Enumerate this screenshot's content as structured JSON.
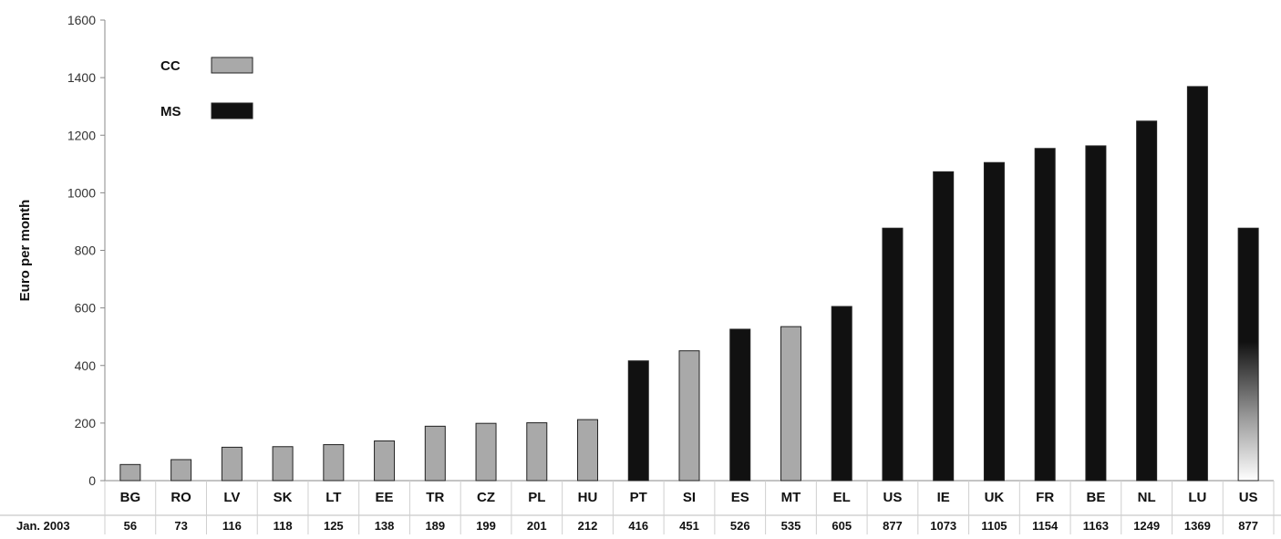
{
  "chart_data": {
    "type": "bar",
    "title": "",
    "xlabel": "",
    "ylabel": "Euro per month",
    "ylim": [
      0,
      1600
    ],
    "yticks": [
      0,
      200,
      400,
      600,
      800,
      1000,
      1200,
      1400,
      1600
    ],
    "grid": false,
    "legend_position": "top-left",
    "table_row_label": "Jan. 2003",
    "series": [
      {
        "name": "CC",
        "color": "#a9a9a9"
      },
      {
        "name": "MS",
        "color": "#111111"
      }
    ],
    "categories": [
      "BG",
      "RO",
      "LV",
      "SK",
      "LT",
      "EE",
      "TR",
      "CZ",
      "PL",
      "HU",
      "PT",
      "SI",
      "ES",
      "MT",
      "EL",
      "US",
      "IE",
      "UK",
      "FR",
      "BE",
      "NL",
      "LU",
      "US"
    ],
    "values": [
      56,
      73,
      116,
      118,
      125,
      138,
      189,
      199,
      201,
      212,
      416,
      451,
      526,
      535,
      605,
      877,
      1073,
      1105,
      1154,
      1163,
      1249,
      1369,
      877
    ],
    "value_labels": [
      "56",
      "73",
      "116",
      "118",
      "125",
      "138",
      "189",
      "199",
      "201",
      "212",
      "416",
      "451",
      "526",
      "535",
      "605",
      "877",
      "1073",
      "1105",
      "1154",
      "1163",
      "1249",
      "1369",
      "877"
    ],
    "bar_series": [
      "CC",
      "CC",
      "CC",
      "CC",
      "CC",
      "CC",
      "CC",
      "CC",
      "CC",
      "CC",
      "MS",
      "CC",
      "MS",
      "CC",
      "MS",
      "MS",
      "MS",
      "MS",
      "MS",
      "MS",
      "MS",
      "MS",
      "gradient"
    ],
    "gradient_bar_colors": [
      "#111111",
      "#ffffff"
    ]
  }
}
